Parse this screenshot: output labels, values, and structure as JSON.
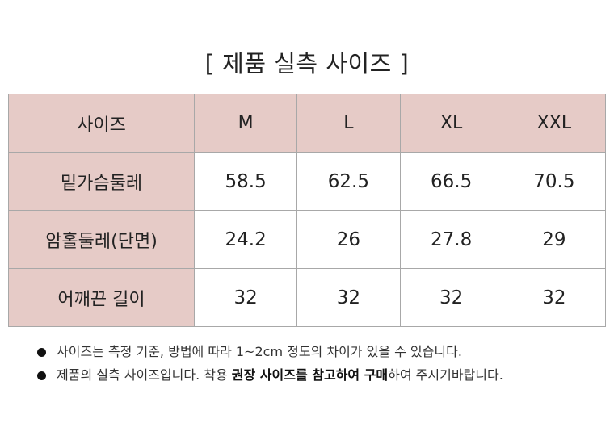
{
  "title": "[ 제품 실측 사이즈 ]",
  "table": {
    "header": [
      "사이즈",
      "M",
      "L",
      "XL",
      "XXL"
    ],
    "rows": [
      [
        "밑가슴둘레",
        "58.5",
        "62.5",
        "66.5",
        "70.5"
      ],
      [
        "암홀둘레(단면)",
        "24.2",
        "26",
        "27.8",
        "29"
      ],
      [
        "어깨끈 길이",
        "32",
        "32",
        "32",
        "32"
      ]
    ]
  },
  "notes": [
    [
      {
        "text": "사이즈는 측정 기준, 방법에 따라 1~2cm 정도의 차이가 있을 수 있습니다.",
        "bold": false
      }
    ],
    [
      {
        "text": "제품의 실측 사이즈입니다. 착용 ",
        "bold": false
      },
      {
        "text": "권장 사이즈를 참고하여 구매",
        "bold": true
      },
      {
        "text": "하여 주시기바랍니다.",
        "bold": false
      }
    ]
  ]
}
